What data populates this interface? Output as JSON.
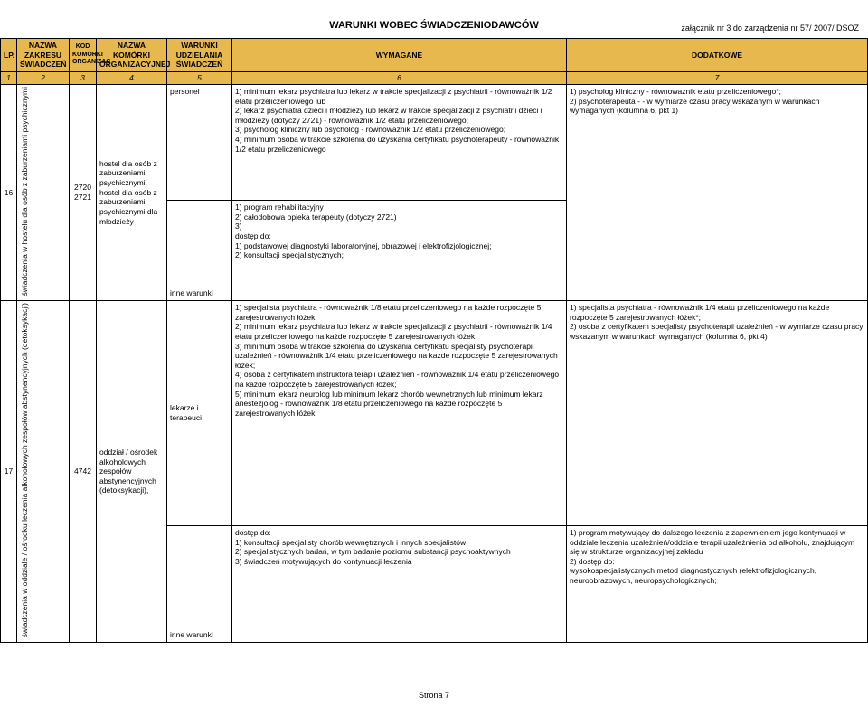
{
  "attachment": "załącznik nr 3 do zarządzenia nr 57/ 2007/ DSOZ",
  "title": "WARUNKI WOBEC ŚWIADCZENIODAWCÓW",
  "headers": {
    "lp": "LP.",
    "nazwa_zakresu": "NAZWA ZAKRESU ŚWIADCZEŃ",
    "kod": "KOD KOMÓRKI ORGANIZAC",
    "nazwa_komorki": "NAZWA KOMÓRKI ORGANIZACYJNEJ",
    "warunki": "WARUNKI UDZIELANIA ŚWIADCZEŃ",
    "wymagane": "WYMAGANE",
    "dodatkowe": "DODATKOWE"
  },
  "numrow": {
    "c1": "1",
    "c2": "2",
    "c3": "3",
    "c4": "4",
    "c5": "5",
    "c6": "6",
    "c7": "7"
  },
  "row16": {
    "lp": "16",
    "zakres": "świadczenia w hostelu dla osób z zaburzeniami psychicznymi",
    "kod": "2720 2721",
    "komorka": "hostel dla osób z zaburzeniami psychicznymi,\nhostel dla osób z zaburzeniami psychicznymi dla młodzieży",
    "w1": "personel",
    "wy1": "1) minimum lekarz psychiatra lub lekarz w trakcie specjalizacji z psychiatrii  - równoważnik 1/2 etatu przeliczeniowego lub\n2) lekarz psychiatra dzieci i młodzieży lub lekarz w trakcie specjalizacji z psychiatrii dzieci i młodzieży (dotyczy 2721) - równoważnik 1/2 etatu przeliczeniowego;\n3) psycholog kliniczny lub psycholog - równoważnik 1/2 etatu przeliczeniowego;\n4) minimum osoba w trakcie szkolenia do uzyskania certyfikatu psychoterapeuty - równoważnik 1/2 etatu przeliczeniowego",
    "w2": "inne warunki",
    "wy2": "1) program rehabilitacyjny\n2) całodobowa opieka terapeuty (dotyczy 2721)\n3)\ndostęp do:\n1) podstawowej diagnostyki laboratoryjnej, obrazowej i elektrofizjologicznej;\n2) konsultacji specjalistycznych;",
    "dod": "1) psycholog kliniczny - równoważnik etatu przeliczeniowego*;\n2) psychoterapeuta -  - w wymiarze czasu pracy wskazanym w warunkach wymaganych (kolumna 6, pkt 1)"
  },
  "row17": {
    "lp": "17",
    "zakres": "świadczenia w oddziale / ośrodku leczenia alkoholowych zespołów abstynencyjnych (detoksykacji)",
    "kod": "4742",
    "komorka": "oddział / ośrodek alkoholowych zespołów abstynencyjnych (detoksykacji),",
    "w1": "lekarze i terapeuci",
    "wy1": "1) specjalista psychiatra - równoważnik 1/8 etatu przeliczeniowego na każde rozpoczęte 5 zarejestrowanych łóżek;\n2) minimum lekarz psychiatra lub lekarz w trakcie specjalizacji z psychiatrii - równoważnik 1/4 etatu przeliczeniowego na każde rozpoczęte 5 zarejestrowanych łóżek;\n3) minimum osoba w trakcie szkolenia do uzyskania certyfikatu specjalisty psychoterapii uzależnień - równoważnik 1/4 etatu przeliczeniowego na każde rozpoczęte 5 zarejestrowanych łóżek;\n4) osoba z certyfikatem instruktora terapii uzależnień - równoważnik 1/4 etatu przeliczeniowego na każde rozpoczęte 5 zarejestrowanych łóżek;\n5) minimum lekarz neurolog lub minimum lekarz chorób wewnętrznych lub minimum lekarz anestezjolog - równoważnik 1/8 etatu przeliczeniowego na każde rozpoczęte 5 zarejestrowanych łóżek",
    "dod1": "1) specjalista psychiatra - równoważnik 1/4 etatu przeliczeniowego na każde rozpoczęte 5 zarejestrowanych łóżek*;\n2) osoba z certyfikatem specjalisty psychoterapii uzależnień - w wymiarze czasu pracy wskazanym w warunkach wymaganych (kolumna 6, pkt 4)",
    "w2": "inne warunki",
    "wy2": "dostęp do:\n1) konsultacji specjalisty chorób wewnętrznych i innych specjalistów\n2) specjalistycznych badań, w tym badanie poziomu substancji psychoaktywnych\n3) świadczeń motywujących do kontynuacji leczenia",
    "dod2": "1) program motywujący do dalszego leczenia z zapewnieniem jego kontynuacji w oddziale leczenia uzależnień/oddziale terapii uzależnienia od alkoholu, znajdującym się w strukturze organizacyjnej zakładu\n2) dostęp do:\nwysokospecjalistycznych metod diagnostycznych (elektrofizjologicznych, neuroobrazowych, neuropsychologicznych;"
  },
  "footer": "Strona 7",
  "colors": {
    "header_bg": "#e6b84d",
    "border": "#000000",
    "bg": "#ffffff"
  }
}
